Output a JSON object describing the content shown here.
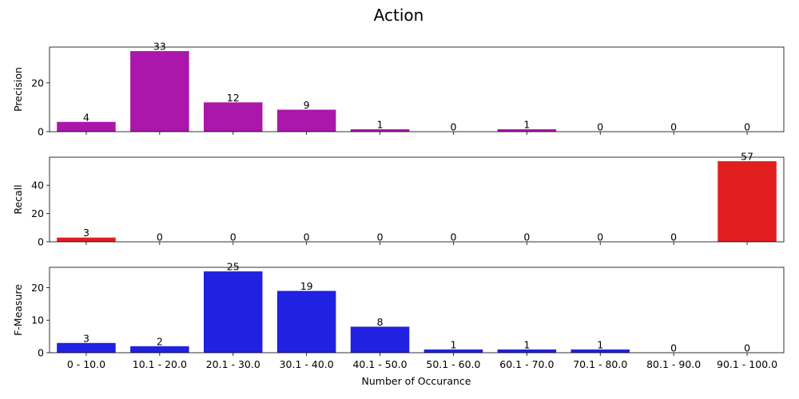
{
  "chart_data": {
    "type": "bar",
    "title": "Action",
    "xlabel": "Number of Occurance",
    "categories": [
      "0 - 10.0",
      "10.1 - 20.0",
      "20.1 - 30.0",
      "30.1 - 40.0",
      "40.1 - 50.0",
      "50.1 - 60.0",
      "60.1 - 70.0",
      "70.1 - 80.0",
      "80.1 - 90.0",
      "90.1 - 100.0"
    ],
    "panels": [
      {
        "ylabel": "Precision",
        "color": "#aa17aa",
        "values": [
          4,
          33,
          12,
          9,
          1,
          0,
          1,
          0,
          0,
          0
        ],
        "ylim": [
          0,
          34.65
        ],
        "yticks": [
          0,
          20
        ]
      },
      {
        "ylabel": "Recall",
        "color": "#e11f1f",
        "values": [
          3,
          0,
          0,
          0,
          0,
          0,
          0,
          0,
          0,
          57
        ],
        "ylim": [
          0,
          59.85
        ],
        "yticks": [
          0,
          20,
          40
        ]
      },
      {
        "ylabel": "F-Measure",
        "color": "#2121e1",
        "values": [
          3,
          2,
          25,
          19,
          8,
          1,
          1,
          1,
          0,
          0
        ],
        "ylim": [
          0,
          26.25
        ],
        "yticks": [
          0,
          10,
          20
        ]
      }
    ],
    "grid": false,
    "legend": "none"
  }
}
